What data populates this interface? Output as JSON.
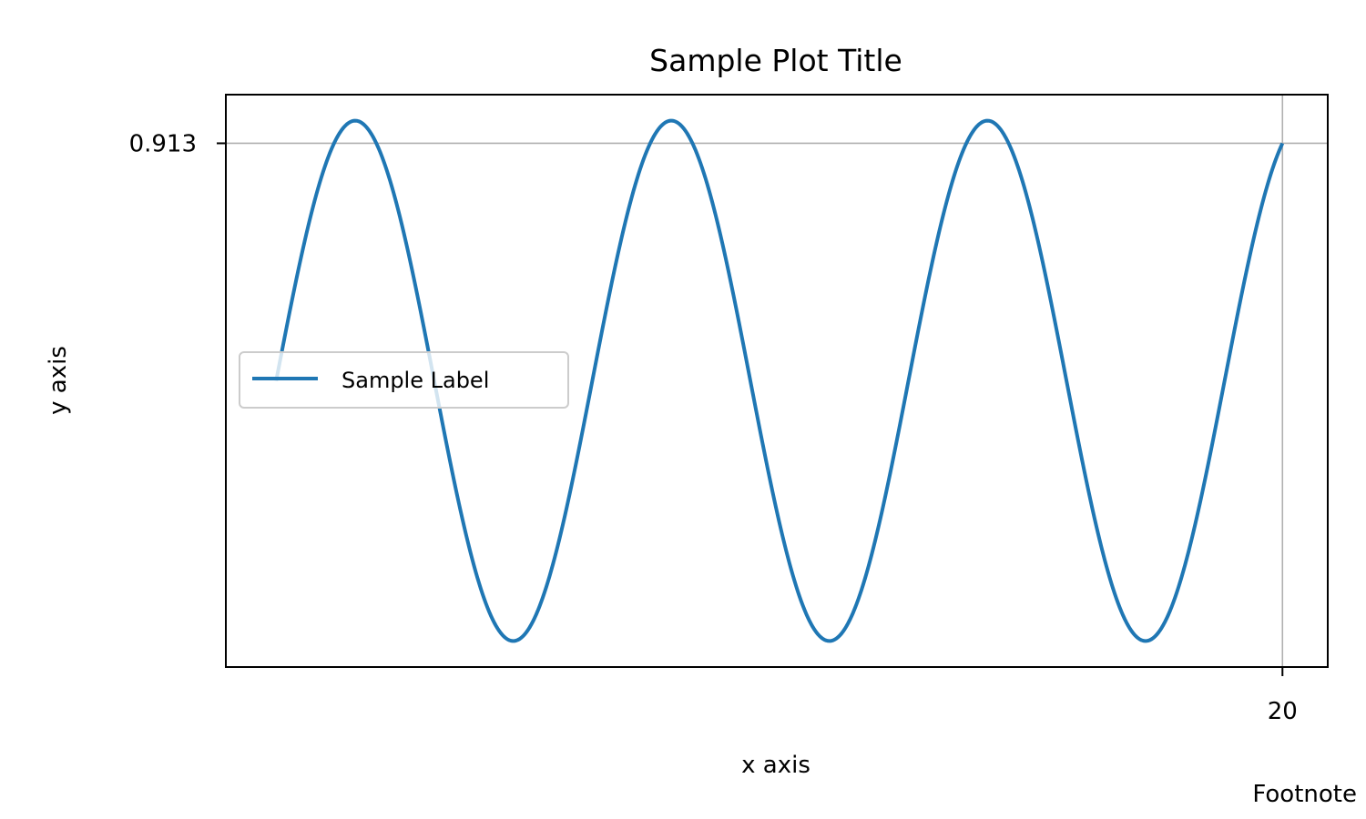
{
  "chart_data": {
    "type": "line",
    "title": "Sample Plot Title",
    "xlabel": "x axis",
    "ylabel": "y axis",
    "footnote": "Footnote",
    "xlim": [
      -1,
      20.9
    ],
    "ylim": [
      -1.1,
      1.1
    ],
    "xticks": [
      20
    ],
    "xtick_labels": [
      "20"
    ],
    "yticks": [
      0.913
    ],
    "ytick_labels": [
      "0.913"
    ],
    "grid": true,
    "legend_loc": "center-left",
    "series": [
      {
        "name": "Sample Label",
        "color": "#1f77b4",
        "function": "sin",
        "x": [
          0,
          0.5,
          1,
          1.5,
          2,
          2.5,
          3,
          3.5,
          4,
          4.5,
          5,
          5.5,
          6,
          6.5,
          7,
          7.5,
          8,
          8.5,
          9,
          9.5,
          10,
          10.5,
          11,
          11.5,
          12,
          12.5,
          13,
          13.5,
          14,
          14.5,
          15,
          15.5,
          16,
          16.5,
          17,
          17.5,
          18,
          18.5,
          19,
          19.5,
          20
        ],
        "y": [
          0.0,
          0.479,
          0.841,
          0.997,
          0.909,
          0.598,
          0.141,
          -0.351,
          -0.757,
          -0.978,
          -0.959,
          -0.706,
          -0.279,
          0.215,
          0.657,
          0.938,
          0.989,
          0.798,
          0.412,
          -0.075,
          -0.544,
          -0.88,
          -1.0,
          -0.875,
          -0.537,
          -0.066,
          0.42,
          0.803,
          0.991,
          0.935,
          0.65,
          0.206,
          -0.288,
          -0.712,
          -0.961,
          -0.977,
          -0.751,
          -0.342,
          0.15,
          0.605,
          0.913
        ]
      }
    ]
  }
}
